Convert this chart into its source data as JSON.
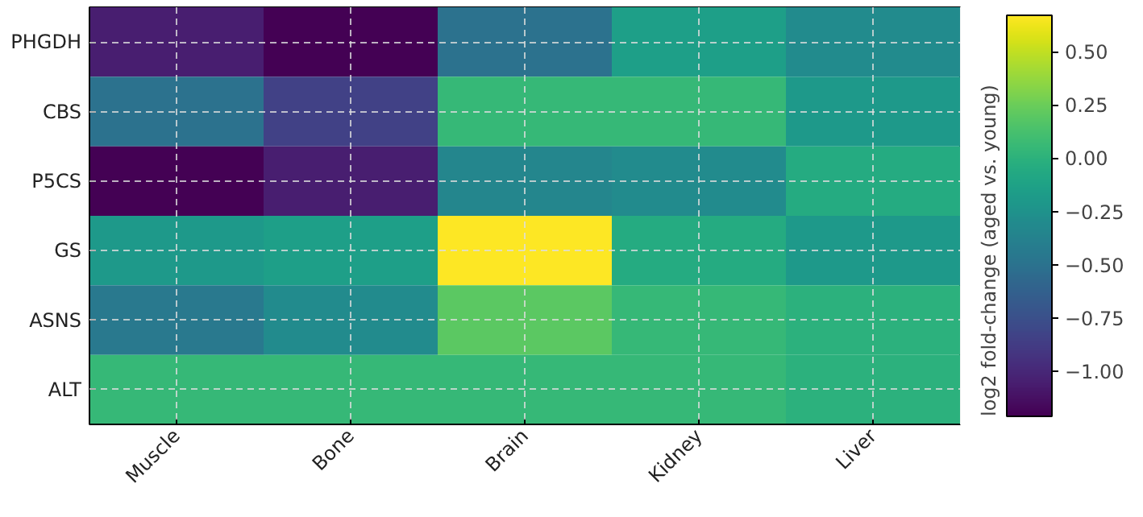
{
  "chart_data": {
    "type": "heatmap",
    "categories": [
      "Muscle",
      "Bone",
      "Brain",
      "Kidney",
      "Liver"
    ],
    "y_categories": [
      "PHGDH",
      "CBS",
      "P5CS",
      "GS",
      "ASNS",
      "ALT"
    ],
    "cells": [
      [
        -1.05,
        -1.21,
        -0.5,
        -0.15,
        -0.3
      ],
      [
        -0.5,
        -0.85,
        0.05,
        0.05,
        -0.2
      ],
      [
        -1.21,
        -1.05,
        -0.35,
        -0.3,
        -0.05
      ],
      [
        -0.2,
        -0.15,
        0.67,
        -0.05,
        -0.2
      ],
      [
        -0.45,
        -0.3,
        0.2,
        0.05,
        0.0
      ],
      [
        0.05,
        0.05,
        0.05,
        0.05,
        0.0
      ]
    ],
    "clabel": "log2 fold-change (aged vs. young)",
    "clim": [
      -1.21,
      0.67
    ],
    "cticks": [
      {
        "value": -1.0,
        "label": "−1.00"
      },
      {
        "value": -0.75,
        "label": "−0.75"
      },
      {
        "value": -0.5,
        "label": "−0.50"
      },
      {
        "value": -0.25,
        "label": "−0.25"
      },
      {
        "value": 0.0,
        "label": "0.00"
      },
      {
        "value": 0.25,
        "label": "0.25"
      },
      {
        "value": 0.5,
        "label": "0.50"
      }
    ],
    "grid": true
  }
}
